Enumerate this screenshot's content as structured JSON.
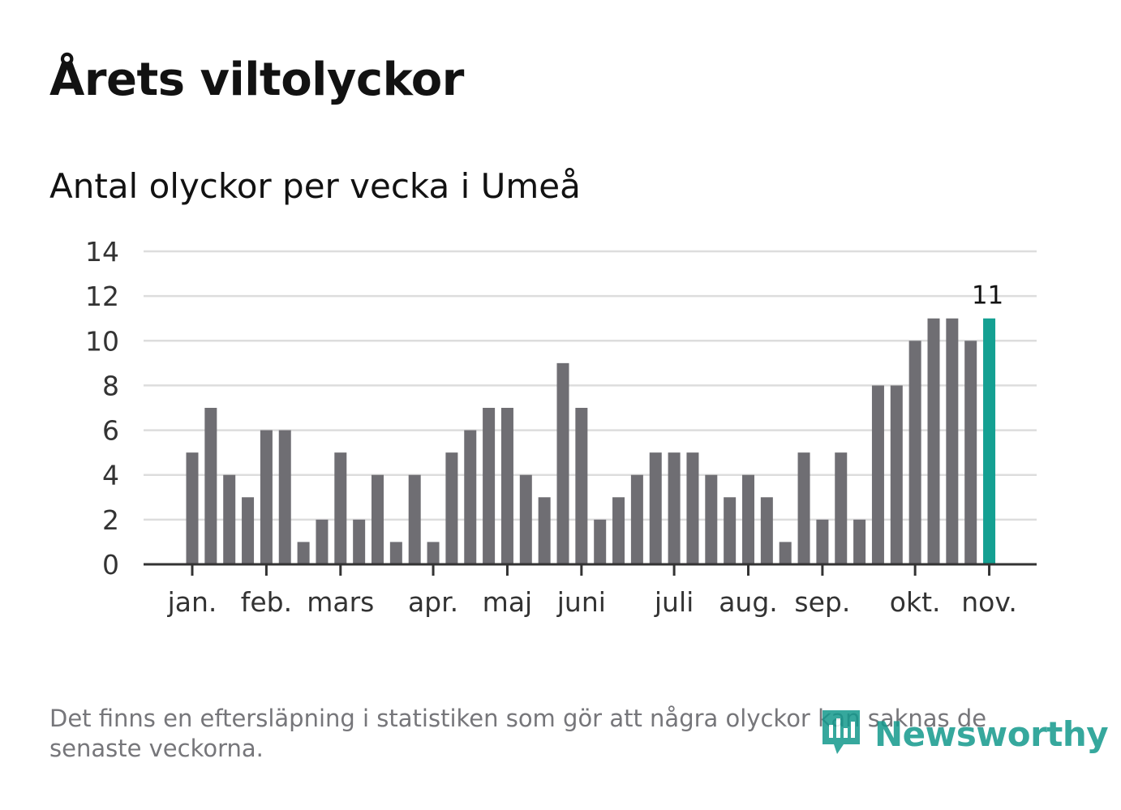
{
  "title": "Årets viltolyckor",
  "subtitle": "Antal olyckor per vecka i Umeå",
  "footnote": "Det finns en eftersläpning i statistiken som gör att några olyckor kan saknas de senaste veckorna.",
  "brand": {
    "name": "Newsworthy",
    "icon": "newsworthy-logo-icon"
  },
  "colors": {
    "bar": "#6f6e73",
    "highlight": "#14a092",
    "grid": "#dddddd",
    "axis": "#333333",
    "text": "#121212",
    "muted": "#76767a"
  },
  "chart_data": {
    "type": "bar",
    "values": [
      5,
      7,
      4,
      3,
      6,
      6,
      1,
      2,
      5,
      2,
      4,
      1,
      4,
      1,
      5,
      6,
      7,
      7,
      4,
      3,
      9,
      7,
      2,
      3,
      4,
      5,
      5,
      5,
      4,
      3,
      4,
      3,
      1,
      5,
      2,
      5,
      2,
      8,
      8,
      10,
      11,
      11,
      10,
      11
    ],
    "highlight_index": 43,
    "highlight_label": "11",
    "ylim": [
      0,
      14
    ],
    "yticks": [
      0,
      2,
      4,
      6,
      8,
      10,
      12,
      14
    ],
    "month_ticks": [
      {
        "label": "jan.",
        "bar": 0
      },
      {
        "label": "feb.",
        "bar": 4
      },
      {
        "label": "mars",
        "bar": 8
      },
      {
        "label": "apr.",
        "bar": 13
      },
      {
        "label": "maj",
        "bar": 17
      },
      {
        "label": "juni",
        "bar": 21
      },
      {
        "label": "juli",
        "bar": 26
      },
      {
        "label": "aug.",
        "bar": 30
      },
      {
        "label": "sep.",
        "bar": 34
      },
      {
        "label": "okt.",
        "bar": 39
      },
      {
        "label": "nov.",
        "bar": 43
      }
    ],
    "xlabel": "",
    "ylabel": ""
  }
}
